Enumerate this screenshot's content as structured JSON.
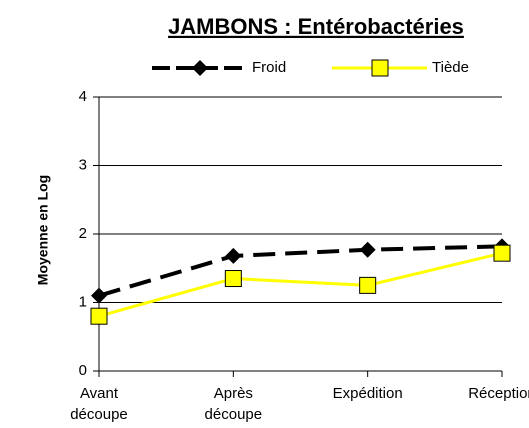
{
  "chart_data": {
    "type": "line",
    "title": "JAMBONS : Entérobactéries",
    "y_label": "Moyenne en Log",
    "categories": [
      "Avant découpe",
      "Après découpe",
      "Expédition",
      "Réception"
    ],
    "series": [
      {
        "name": "Froid",
        "color": "#000000",
        "marker": "diamond",
        "dashed": true,
        "values": [
          1.1,
          1.68,
          1.77,
          1.82
        ]
      },
      {
        "name": "Tiède",
        "color": "#ffff00",
        "marker": "square",
        "dashed": false,
        "values": [
          0.8,
          1.35,
          1.25,
          1.72
        ]
      }
    ],
    "ylim": [
      0,
      4
    ],
    "yticks": [
      0,
      1,
      2,
      3,
      4
    ],
    "grid": true,
    "legend": "top"
  }
}
